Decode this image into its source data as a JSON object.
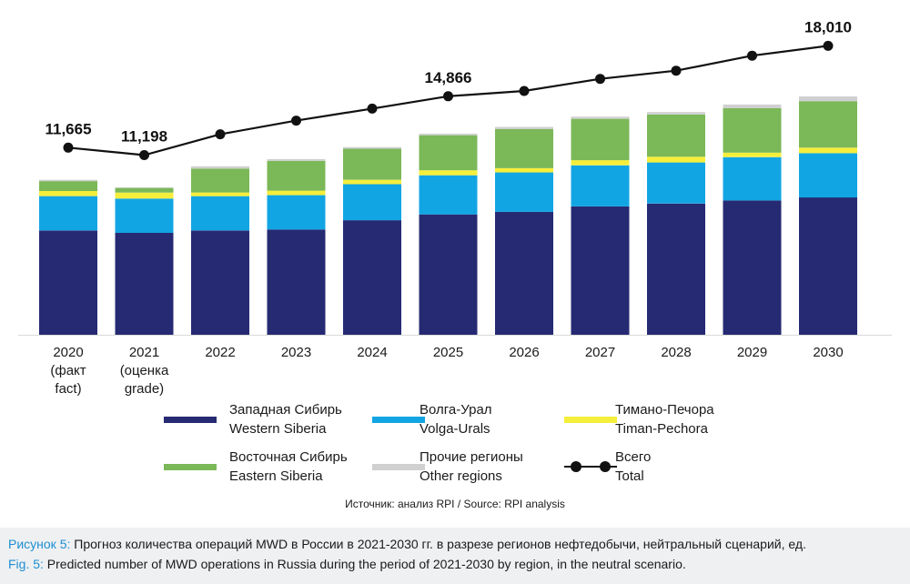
{
  "chart_data": {
    "type": "bar",
    "stacked": true,
    "categories": [
      "2020",
      "2021",
      "2022",
      "2023",
      "2024",
      "2025",
      "2026",
      "2027",
      "2028",
      "2029",
      "2030"
    ],
    "category_sublabels": [
      [
        "(факт",
        "fact)"
      ],
      [
        "(оценка",
        "grade)"
      ],
      [],
      [],
      [],
      [],
      [],
      [],
      [],
      [],
      []
    ],
    "series": [
      {
        "name": "Западная Сибирь / Western Siberia",
        "color": "#262a73",
        "values": [
          6500,
          6350,
          6500,
          6560,
          7140,
          7500,
          7660,
          8000,
          8180,
          8370,
          8560
        ]
      },
      {
        "name": "Волга-Урал / Volga-Urals",
        "color": "#12a5e4",
        "values": [
          2140,
          2140,
          2140,
          2140,
          2250,
          2440,
          2460,
          2560,
          2560,
          2700,
          2760
        ]
      },
      {
        "name": "Тимано-Печора / Timan-Pechora",
        "color": "#f5ee3b",
        "values": [
          320,
          370,
          230,
          280,
          270,
          310,
          260,
          320,
          360,
          280,
          340
        ]
      },
      {
        "name": "Восточная Сибирь / Eastern Siberia",
        "color": "#7bb858",
        "values": [
          620,
          290,
          1490,
          1860,
          1940,
          2190,
          2440,
          2580,
          2630,
          2770,
          2900
        ]
      },
      {
        "name": "Прочие регионы / Other regions",
        "color": "#d0d0d0",
        "values": [
          80,
          50,
          140,
          110,
          100,
          100,
          140,
          140,
          150,
          230,
          300
        ]
      }
    ],
    "total": {
      "name": "Всего / Total",
      "values": [
        11665,
        11198,
        12500,
        13350,
        14100,
        14866,
        15200,
        15950,
        16460,
        17400,
        18010
      ]
    },
    "point_labels": [
      {
        "index": 0,
        "text": "11,665"
      },
      {
        "index": 1,
        "text": "11,198"
      },
      {
        "index": 5,
        "text": "14,866"
      },
      {
        "index": 10,
        "text": "18,010"
      }
    ],
    "ylim": [
      0,
      18600
    ],
    "grid": false,
    "legend_position": "bottom"
  },
  "legend": [
    {
      "ru": "Западная Сибирь",
      "en": "Western Siberia",
      "kind": "swatch",
      "color": "#262a73"
    },
    {
      "ru": "Волга-Урал",
      "en": "Volga-Urals",
      "kind": "swatch",
      "color": "#12a5e4"
    },
    {
      "ru": "Тимано-Печора",
      "en": "Timan-Pechora",
      "kind": "swatch",
      "color": "#f5ee3b"
    },
    {
      "ru": "Восточная Сибирь",
      "en": "Eastern Siberia",
      "kind": "swatch",
      "color": "#7bb858"
    },
    {
      "ru": "Прочие регионы",
      "en": "Other regions",
      "kind": "swatch",
      "color": "#d0d0d0"
    },
    {
      "ru": "Всего",
      "en": "Total",
      "kind": "line"
    }
  ],
  "source": "Источник: анализ RPI / Source: RPI analysis",
  "caption": {
    "ru_tag": "Рисунок 5:",
    "ru_text": " Прогноз количества операций MWD в России в 2021-2030 гг. в разрезе регионов нефтедобычи, нейтральный сценарий, ед.",
    "en_tag": "Fig. 5:",
    "en_text": " Predicted number of MWD operations in Russia during the period of 2021-2030 by region, in  the neutral scenario."
  }
}
